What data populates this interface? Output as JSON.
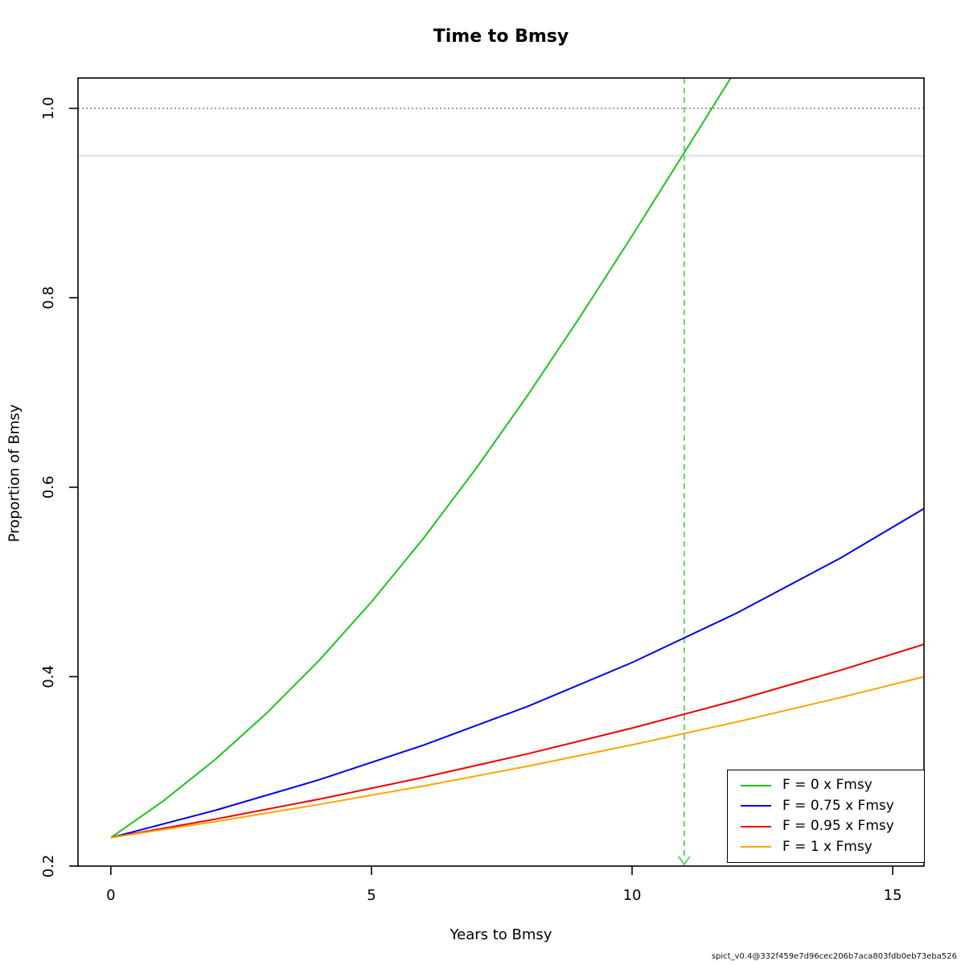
{
  "title": "Time to Bmsy",
  "xlabel": "Years to Bmsy",
  "ylabel": "Proportion of Bmsy",
  "footer": "spict_v0.4@332f459e7d96cec206b7aca803fdb0eb73eba526",
  "chart_data": {
    "type": "line",
    "title": "Time to Bmsy",
    "xlabel": "Years to Bmsy",
    "ylabel": "Proportion of Bmsy",
    "xlim": [
      -0.63,
      15.6
    ],
    "ylim": [
      0.2,
      1.032
    ],
    "x_ticks": [
      0,
      5,
      10,
      15
    ],
    "x_tick_labels": [
      "0",
      "5",
      "10",
      "15"
    ],
    "y_ticks": [
      0.2,
      0.4,
      0.6,
      0.8,
      1.0
    ],
    "y_tick_labels": [
      "0.2",
      "0.4",
      "0.6",
      "0.8",
      "1.0"
    ],
    "grid": false,
    "legend_position": "bottom-right",
    "start_value": 0.23,
    "reference_lines": [
      {
        "orientation": "horizontal",
        "value": 1.0,
        "style": "dotted",
        "color": "#404040",
        "width": 1
      },
      {
        "orientation": "horizontal",
        "value": 0.95,
        "style": "solid",
        "color": "#e4e4e4",
        "width": 2.5
      },
      {
        "orientation": "vertical",
        "value": 11,
        "style": "dashed",
        "color": "#55d455",
        "width": 1.8,
        "arrow": "down"
      }
    ],
    "series": [
      {
        "name": "F = 0 x Fmsy",
        "color": "#1ec31e",
        "x": [
          0,
          1,
          2,
          3,
          4,
          5,
          6,
          7,
          8,
          9,
          10,
          11,
          11.5,
          12
        ],
        "y": [
          0.23,
          0.2685,
          0.3124,
          0.362,
          0.4174,
          0.4789,
          0.5462,
          0.6193,
          0.6973,
          0.7797,
          0.8654,
          0.9531,
          0.9973,
          1.0416
        ]
      },
      {
        "name": "F = 0.75 x Fmsy",
        "color": "#0000ee",
        "x": [
          0,
          2,
          4,
          6,
          8,
          10,
          12,
          14,
          15.6
        ],
        "y": [
          0.23,
          0.2588,
          0.2912,
          0.3277,
          0.3687,
          0.4149,
          0.4669,
          0.5253,
          0.5774
        ]
      },
      {
        "name": "F = 0.95 x Fmsy",
        "color": "#ee0000",
        "x": [
          0,
          2,
          4,
          6,
          8,
          10,
          12,
          14,
          15.6
        ],
        "y": [
          0.23,
          0.2495,
          0.2707,
          0.2937,
          0.3186,
          0.3457,
          0.375,
          0.4068,
          0.4341
        ]
      },
      {
        "name": "F = 1 x Fmsy",
        "color": "#ffa500",
        "x": [
          0,
          2,
          4,
          6,
          8,
          10,
          12,
          14,
          15.6
        ],
        "y": [
          0.23,
          0.2469,
          0.2651,
          0.2846,
          0.3055,
          0.328,
          0.3521,
          0.378,
          0.3999
        ]
      }
    ]
  }
}
